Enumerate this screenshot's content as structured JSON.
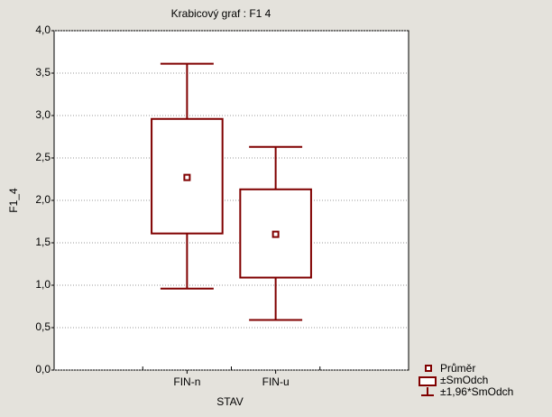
{
  "chart_data": {
    "type": "box",
    "title": "Krabicový  graf :   F1  4",
    "x_label": "STAV",
    "y_label": "F1_4",
    "categories": [
      "FIN-n",
      "FIN-u"
    ],
    "boxes": [
      {
        "mean": 2.27,
        "box": [
          1.61,
          2.96
        ],
        "whiskers": [
          0.96,
          3.61
        ]
      },
      {
        "mean": 1.6,
        "box": [
          1.09,
          2.13
        ],
        "whiskers": [
          0.59,
          2.63
        ]
      }
    ],
    "color": "#800000",
    "legend": {
      "mean": "Průměr",
      "box": "±SmOdch",
      "whiskers": "±1,96*SmOdch"
    },
    "ylim": [
      0,
      4
    ],
    "yticks": [
      {
        "value": 0,
        "label": "0,0"
      },
      {
        "value": 0.5,
        "label": "0,5"
      },
      {
        "value": 1,
        "label": "1,0"
      },
      {
        "value": 1.5,
        "label": "1,5"
      },
      {
        "value": 2,
        "label": "2,0"
      },
      {
        "value": 2.5,
        "label": "2,5"
      },
      {
        "value": 3,
        "label": "3,0"
      },
      {
        "value": 3.5,
        "label": "3,5"
      },
      {
        "value": 4,
        "label": "4,0"
      }
    ],
    "grid": true
  }
}
